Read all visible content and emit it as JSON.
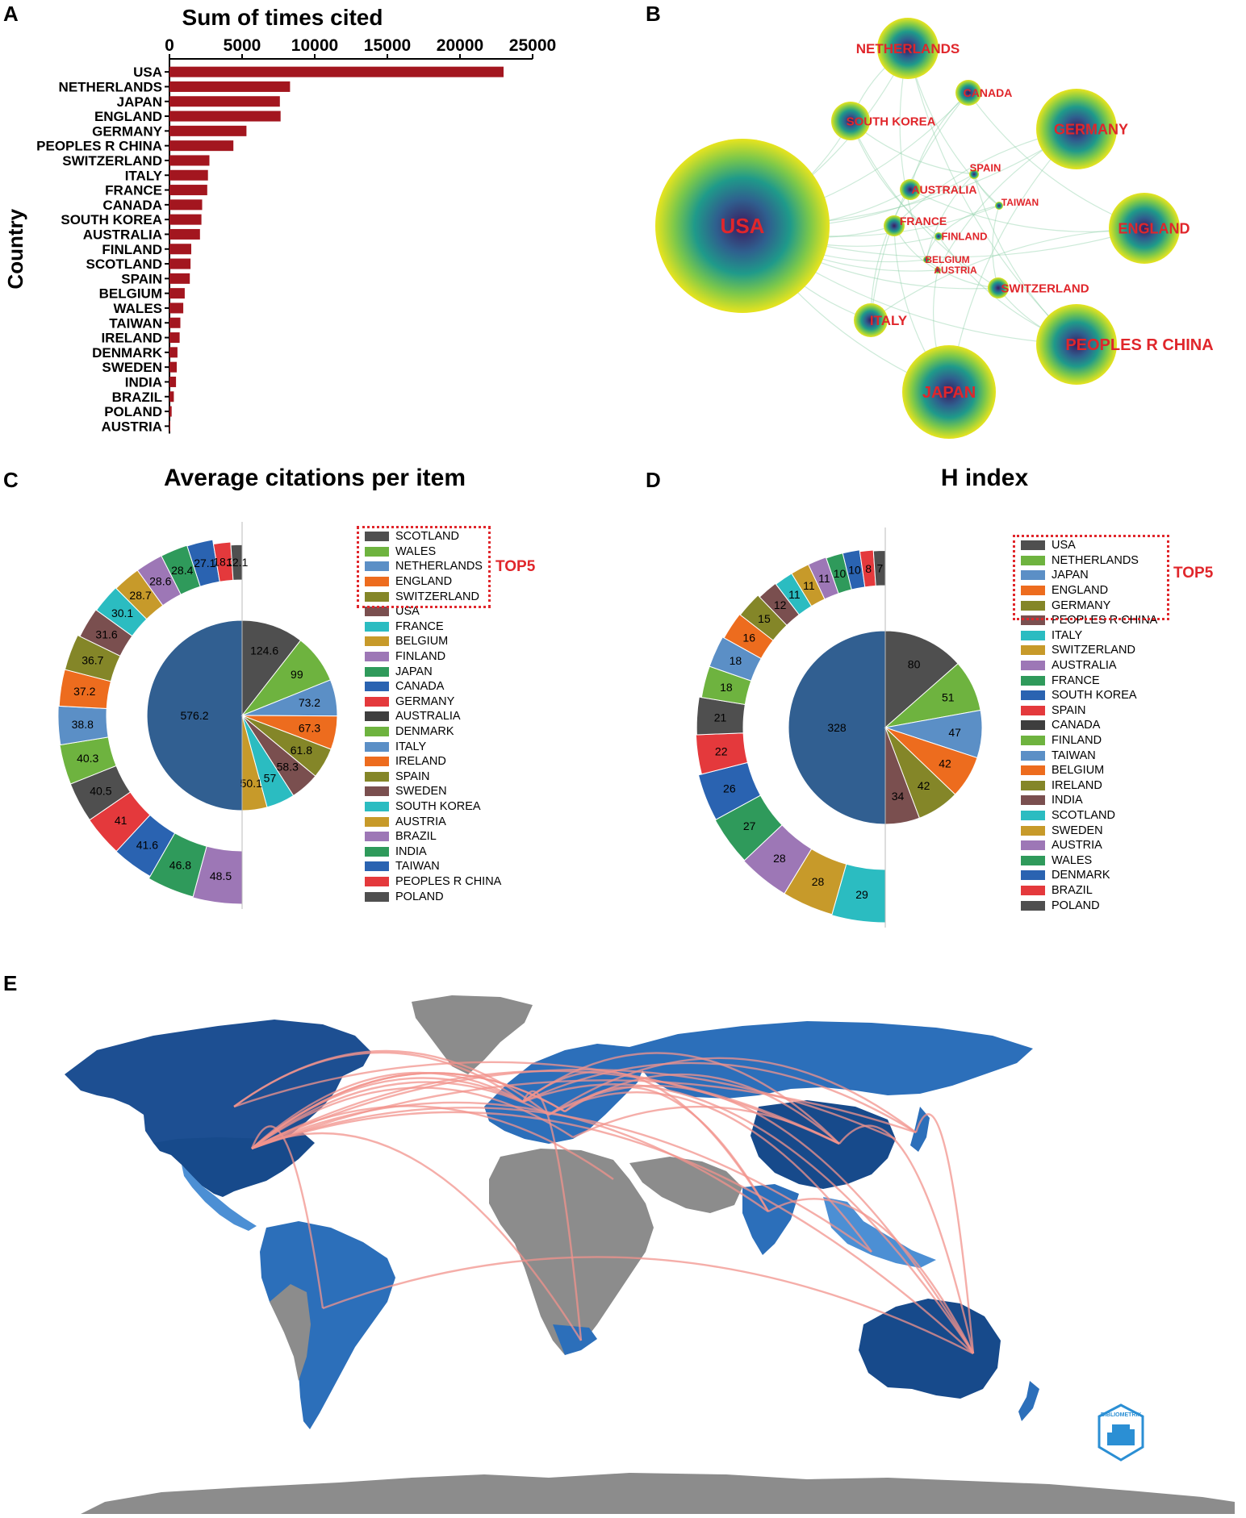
{
  "panels": {
    "a": {
      "letter": "A",
      "title": "Sum of times cited",
      "ylabel": "Country"
    },
    "b": {
      "letter": "B"
    },
    "c": {
      "letter": "C",
      "title": "Average citations per item",
      "top5_label": "TOP5"
    },
    "d": {
      "letter": "D",
      "title": "H index",
      "top5_label": "TOP5"
    },
    "e": {
      "letter": "E"
    }
  },
  "chart_data": [
    {
      "type": "bar",
      "orientation": "horizontal",
      "title": "Sum of times cited",
      "ylabel": "Country",
      "xlim": [
        0,
        25000
      ],
      "xticks": [
        0,
        5000,
        10000,
        15000,
        20000,
        25000
      ],
      "color": "#a3161f",
      "categories": [
        "USA",
        "NETHERLANDS",
        "JAPAN",
        "ENGLAND",
        "GERMANY",
        "PEOPLES R CHINA",
        "SWITZERLAND",
        "ITALY",
        "FRANCE",
        "CANADA",
        "SOUTH KOREA",
        "AUSTRALIA",
        "FINLAND",
        "SCOTLAND",
        "SPAIN",
        "BELGIUM",
        "WALES",
        "TAIWAN",
        "IRELAND",
        "DENMARK",
        "SWEDEN",
        "INDIA",
        "BRAZIL",
        "POLAND",
        "AUSTRIA"
      ],
      "values": [
        23000,
        8300,
        7600,
        7650,
        5300,
        4400,
        2750,
        2650,
        2600,
        2250,
        2200,
        2100,
        1500,
        1450,
        1400,
        1050,
        950,
        750,
        700,
        550,
        500,
        450,
        300,
        150,
        50
      ]
    },
    {
      "type": "network",
      "nodes": [
        {
          "label": "USA",
          "size": 1.0
        },
        {
          "label": "NETHERLANDS",
          "size": 0.36
        },
        {
          "label": "CANADA",
          "size": 0.16
        },
        {
          "label": "SOUTH KOREA",
          "size": 0.23
        },
        {
          "label": "GERMANY",
          "size": 0.47
        },
        {
          "label": "SPAIN",
          "size": 0.07
        },
        {
          "label": "AUSTRALIA",
          "size": 0.12
        },
        {
          "label": "TAIWAN",
          "size": 0.06
        },
        {
          "label": "FRANCE",
          "size": 0.12
        },
        {
          "label": "FINLAND",
          "size": 0.06
        },
        {
          "label": "ENGLAND",
          "size": 0.4
        },
        {
          "label": "BELGIUM",
          "size": 0.06
        },
        {
          "label": "AUSTRIA",
          "size": 0.05
        },
        {
          "label": "SWITZERLAND",
          "size": 0.12
        },
        {
          "label": "ITALY",
          "size": 0.2
        },
        {
          "label": "PEOPLES R CHINA",
          "size": 0.47
        },
        {
          "label": "JAPAN",
          "size": 0.53
        }
      ]
    },
    {
      "type": "pie",
      "title": "Average citations per item",
      "top5": [
        "SCOTLAND",
        "WALES",
        "NETHERLANDS",
        "ENGLAND",
        "SWITZERLAND"
      ],
      "legend": [
        {
          "name": "SCOTLAND",
          "color": "#4f4f4f"
        },
        {
          "name": "WALES",
          "color": "#6eb33f"
        },
        {
          "name": "NETHERLANDS",
          "color": "#5b8fc6"
        },
        {
          "name": "ENGLAND",
          "color": "#ed6c1e"
        },
        {
          "name": "SWITZERLAND",
          "color": "#848628"
        },
        {
          "name": "USA",
          "color": "#7a4f4f"
        },
        {
          "name": "FRANCE",
          "color": "#2bbcc1"
        },
        {
          "name": "BELGIUM",
          "color": "#c79a2a"
        },
        {
          "name": "FINLAND",
          "color": "#9d77b6"
        },
        {
          "name": "JAPAN",
          "color": "#2f9a5b"
        },
        {
          "name": "CANADA",
          "color": "#2a63b1"
        },
        {
          "name": "GERMANY",
          "color": "#e4393c"
        },
        {
          "name": "AUSTRALIA",
          "color": "#3e3e3e"
        },
        {
          "name": "DENMARK",
          "color": "#6eb33f"
        },
        {
          "name": "ITALY",
          "color": "#5b8fc6"
        },
        {
          "name": "IRELAND",
          "color": "#ed6c1e"
        },
        {
          "name": "SPAIN",
          "color": "#848628"
        },
        {
          "name": "SWEDEN",
          "color": "#7a4f4f"
        },
        {
          "name": "SOUTH KOREA",
          "color": "#2bbcc1"
        },
        {
          "name": "AUSTRIA",
          "color": "#c79a2a"
        },
        {
          "name": "BRAZIL",
          "color": "#9d77b6"
        },
        {
          "name": "INDIA",
          "color": "#2f9a5b"
        },
        {
          "name": "TAIWAN",
          "color": "#2a63b1"
        },
        {
          "name": "PEOPLES R CHINA",
          "color": "#e4393c"
        },
        {
          "name": "POLAND",
          "color": "#4f4f4f"
        }
      ],
      "inner": {
        "values": [
          576.2,
          124.6,
          99,
          73.2,
          67.3,
          61.8,
          58.3,
          57,
          50.1
        ],
        "labels": [
          "576.2",
          "124.6",
          "99",
          "73.2",
          "67.3",
          "61.8",
          "58.3",
          "57",
          "50.1"
        ],
        "colors": [
          "#315f91",
          "#4f4f4f",
          "#6eb33f",
          "#5b8fc6",
          "#ed6c1e",
          "#848628",
          "#7a4f4f",
          "#2bbcc1",
          "#c79a2a"
        ]
      },
      "outer": {
        "values": [
          48.5,
          46.8,
          41.6,
          41,
          40.5,
          40.3,
          38.8,
          37.2,
          36.7,
          31.6,
          30.1,
          28.7,
          28.6,
          28.4,
          27.1,
          18.3,
          12.1
        ],
        "labels": [
          "48.5",
          "46.8",
          "41.6",
          "41",
          "40.5",
          "40.3",
          "38.8",
          "37.2",
          "36.7",
          "31.6",
          "30.1",
          "28.7",
          "28.6",
          "28.4",
          "27.1",
          "18.3",
          "12.1"
        ],
        "colors": [
          "#9d77b6",
          "#2f9a5b",
          "#2a63b1",
          "#e4393c",
          "#4f4f4f",
          "#6eb33f",
          "#5b8fc6",
          "#ed6c1e",
          "#848628",
          "#7a4f4f",
          "#2bbcc1",
          "#c79a2a",
          "#9d77b6",
          "#2f9a5b",
          "#2a63b1",
          "#e4393c",
          "#4f4f4f"
        ]
      }
    },
    {
      "type": "pie",
      "title": "H index",
      "top5": [
        "USA",
        "NETHERLANDS",
        "JAPAN",
        "ENGLAND",
        "GERMANY"
      ],
      "legend": [
        {
          "name": "USA",
          "color": "#4f4f4f"
        },
        {
          "name": "NETHERLANDS",
          "color": "#6eb33f"
        },
        {
          "name": "JAPAN",
          "color": "#5b8fc6"
        },
        {
          "name": "ENGLAND",
          "color": "#ed6c1e"
        },
        {
          "name": "GERMANY",
          "color": "#848628"
        },
        {
          "name": "PEOPLES R CHINA",
          "color": "#7a4f4f"
        },
        {
          "name": "ITALY",
          "color": "#2bbcc1"
        },
        {
          "name": "SWITZERLAND",
          "color": "#c79a2a"
        },
        {
          "name": "AUSTRALIA",
          "color": "#9d77b6"
        },
        {
          "name": "FRANCE",
          "color": "#2f9a5b"
        },
        {
          "name": "SOUTH KOREA",
          "color": "#2a63b1"
        },
        {
          "name": "SPAIN",
          "color": "#e4393c"
        },
        {
          "name": "CANADA",
          "color": "#3e3e3e"
        },
        {
          "name": "FINLAND",
          "color": "#6eb33f"
        },
        {
          "name": "TAIWAN",
          "color": "#5b8fc6"
        },
        {
          "name": "BELGIUM",
          "color": "#ed6c1e"
        },
        {
          "name": "IRELAND",
          "color": "#848628"
        },
        {
          "name": "INDIA",
          "color": "#7a4f4f"
        },
        {
          "name": "SCOTLAND",
          "color": "#2bbcc1"
        },
        {
          "name": "SWEDEN",
          "color": "#c79a2a"
        },
        {
          "name": "AUSTRIA",
          "color": "#9d77b6"
        },
        {
          "name": "WALES",
          "color": "#2f9a5b"
        },
        {
          "name": "DENMARK",
          "color": "#2a63b1"
        },
        {
          "name": "BRAZIL",
          "color": "#e4393c"
        },
        {
          "name": "POLAND",
          "color": "#4f4f4f"
        }
      ],
      "inner": {
        "values": [
          328,
          80,
          51,
          47,
          42,
          42,
          34
        ],
        "labels": [
          "328",
          "80",
          "51",
          "47",
          "42",
          "42",
          "34"
        ],
        "colors": [
          "#315f91",
          "#4f4f4f",
          "#6eb33f",
          "#5b8fc6",
          "#ed6c1e",
          "#848628",
          "#7a4f4f"
        ]
      },
      "outer": {
        "values": [
          29,
          28,
          28,
          27,
          26,
          22,
          21,
          18,
          18,
          16,
          15,
          12,
          11,
          11,
          11,
          10,
          10,
          8,
          7
        ],
        "labels": [
          "29",
          "28",
          "28",
          "27",
          "26",
          "22",
          "21",
          "18",
          "18",
          "16",
          "15",
          "12",
          "11",
          "11",
          "11",
          "10",
          "10",
          "8",
          "7"
        ],
        "colors": [
          "#2bbcc1",
          "#c79a2a",
          "#9d77b6",
          "#2f9a5b",
          "#2a63b1",
          "#e4393c",
          "#4f4f4f",
          "#6eb33f",
          "#5b8fc6",
          "#ed6c1e",
          "#848628",
          "#7a4f4f",
          "#2bbcc1",
          "#c79a2a",
          "#9d77b6",
          "#2f9a5b",
          "#2a63b1",
          "#e4393c",
          "#4f4f4f"
        ]
      }
    }
  ],
  "map": {
    "land_grey": "#8c8c8c",
    "blue_dark": "#174a8b",
    "blue_mid": "#2c6fba",
    "blue_light": "#4c8fd4",
    "link_color": "#f2938c",
    "badge_text": "BIBLIOMETRIX"
  }
}
